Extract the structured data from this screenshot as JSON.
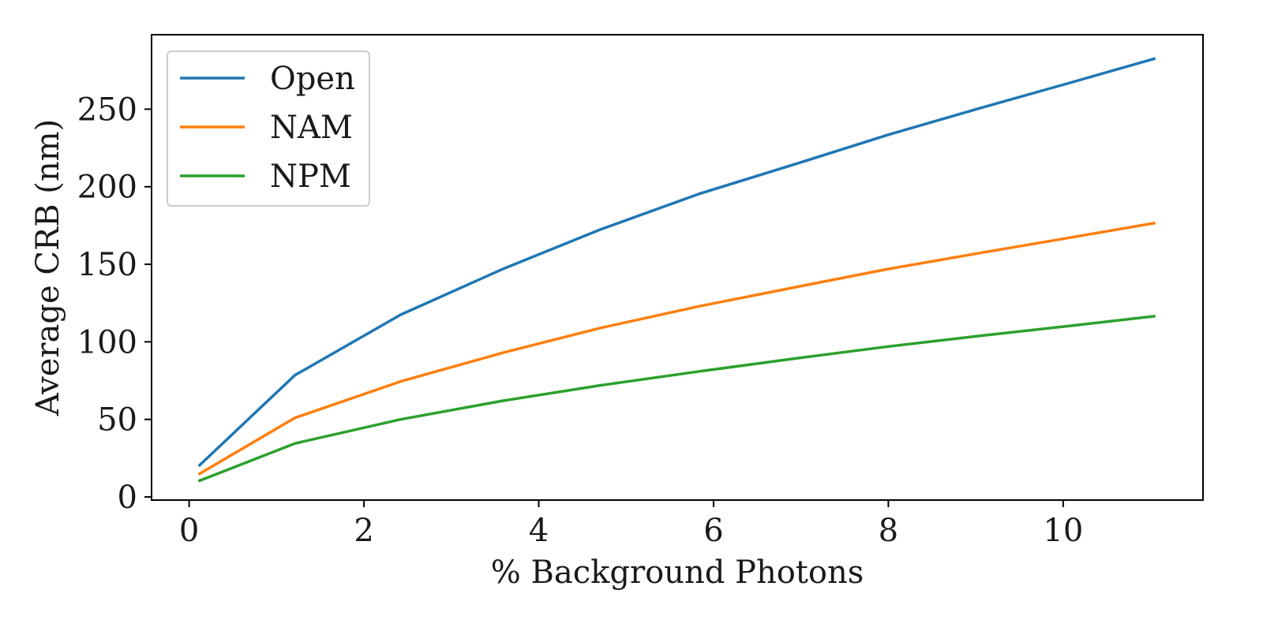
{
  "chart_data": {
    "type": "line",
    "xlabel": "% Background Photons",
    "ylabel": "Average CRB (nm)",
    "xlim": [
      -0.43,
      11.6
    ],
    "ylim": [
      -2.0,
      298.0
    ],
    "xticks": [
      0,
      2,
      4,
      6,
      8,
      10
    ],
    "yticks": [
      0,
      50,
      100,
      150,
      200,
      250
    ],
    "grid": false,
    "legend_position": "upper left",
    "x": [
      0.12,
      1.21,
      2.42,
      3.59,
      4.71,
      5.84,
      6.96,
      8.0,
      9.07,
      10.11,
      11.04
    ],
    "series": [
      {
        "name": "Open",
        "color": "#1f77b4",
        "values": [
          20.5,
          78.5,
          117.5,
          147.0,
          172.5,
          195.5,
          215.0,
          233.5,
          251.0,
          267.5,
          282.5
        ]
      },
      {
        "name": "NAM",
        "color": "#ff7f0e",
        "values": [
          15.0,
          51.0,
          74.5,
          93.0,
          109.0,
          123.0,
          135.5,
          147.0,
          157.5,
          167.5,
          176.5
        ]
      },
      {
        "name": "NPM",
        "color": "#2ca02c",
        "values": [
          10.5,
          34.5,
          50.0,
          62.0,
          72.0,
          81.0,
          89.5,
          97.0,
          104.0,
          110.5,
          116.5
        ]
      }
    ]
  }
}
